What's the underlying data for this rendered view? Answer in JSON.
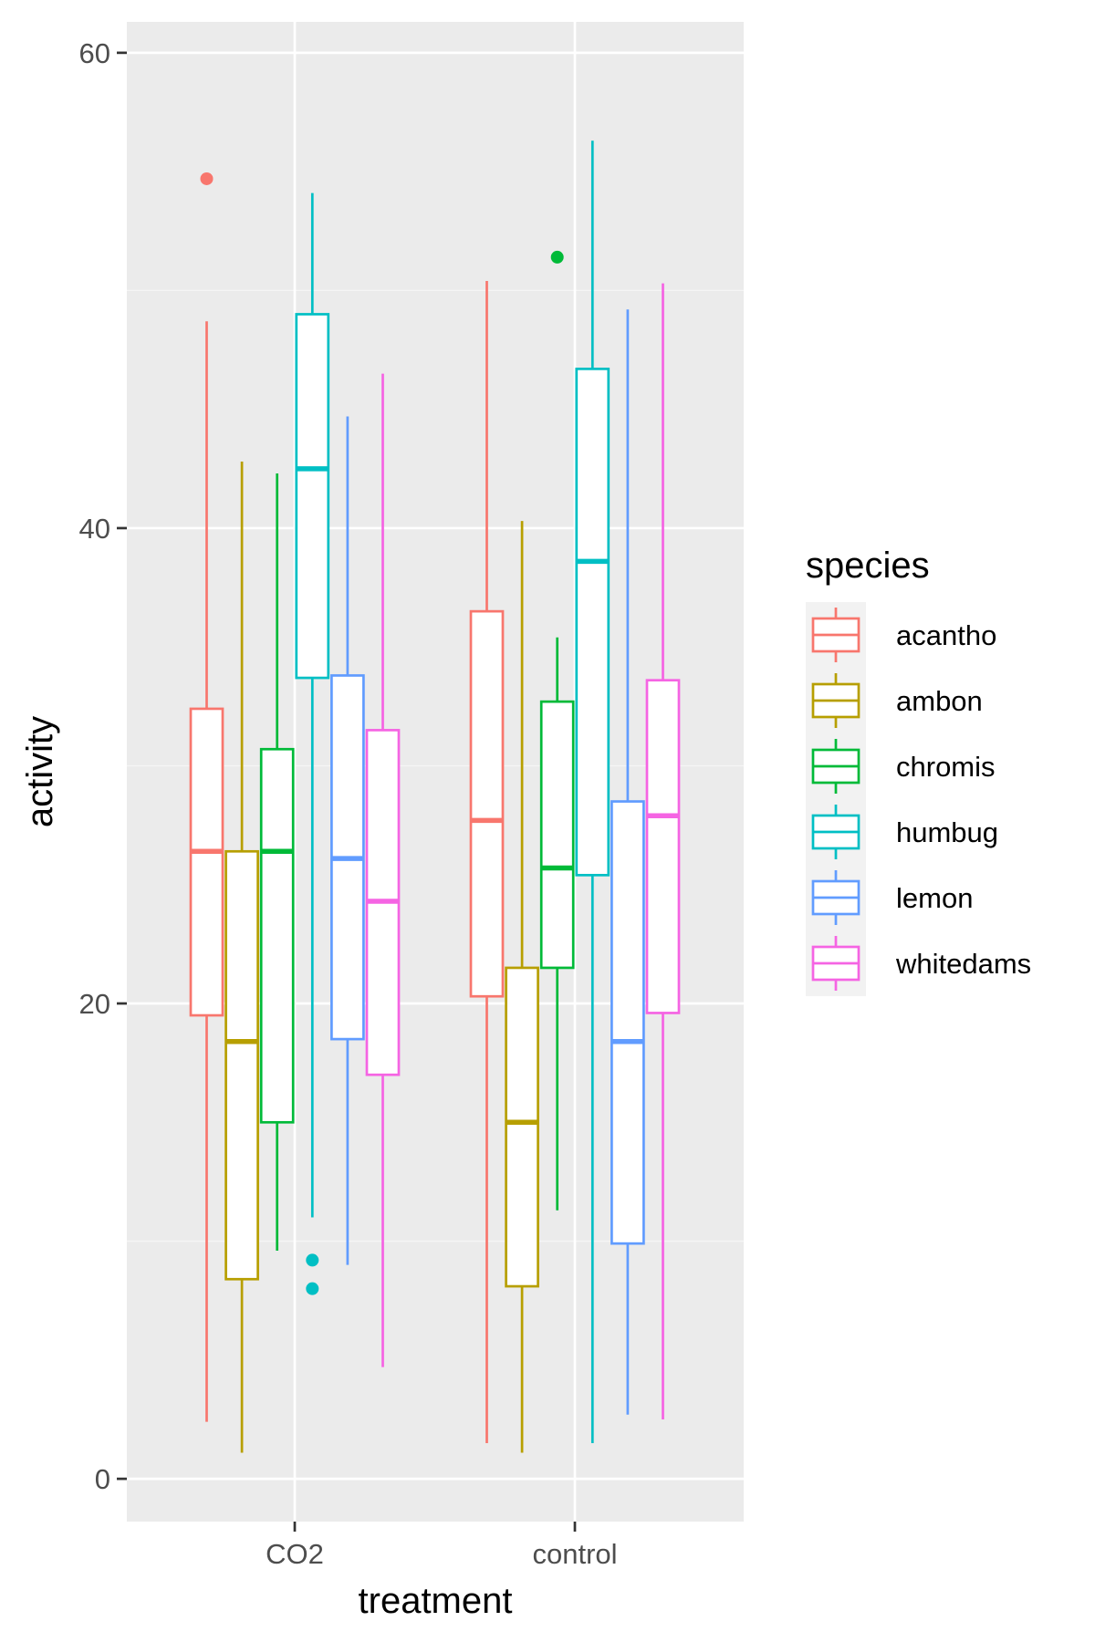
{
  "chart_data": {
    "type": "boxplot",
    "xlabel": "treatment",
    "ylabel": "activity",
    "ylim": [
      -1.8,
      61.3
    ],
    "yticks": [
      0,
      20,
      40,
      60
    ],
    "grid": true,
    "legend": {
      "title": "species",
      "position": "right"
    },
    "categories": [
      "CO2",
      "control"
    ],
    "series": [
      {
        "name": "acantho",
        "color": "#F8766D",
        "boxes": [
          {
            "category": "CO2",
            "whisker_low": 2.4,
            "q1": 19.5,
            "median": 26.4,
            "q3": 32.4,
            "whisker_high": 48.7,
            "outliers": [
              54.7
            ]
          },
          {
            "category": "control",
            "whisker_low": 1.5,
            "q1": 20.3,
            "median": 27.7,
            "q3": 36.5,
            "whisker_high": 50.4,
            "outliers": []
          }
        ]
      },
      {
        "name": "ambon",
        "color": "#B79F00",
        "boxes": [
          {
            "category": "CO2",
            "whisker_low": 1.1,
            "q1": 8.4,
            "median": 18.4,
            "q3": 26.4,
            "whisker_high": 42.8,
            "outliers": []
          },
          {
            "category": "control",
            "whisker_low": 1.1,
            "q1": 8.1,
            "median": 15.0,
            "q3": 21.5,
            "whisker_high": 40.3,
            "outliers": []
          }
        ]
      },
      {
        "name": "chromis",
        "color": "#00BA38",
        "boxes": [
          {
            "category": "CO2",
            "whisker_low": 9.6,
            "q1": 15.0,
            "median": 26.4,
            "q3": 30.7,
            "whisker_high": 42.3,
            "outliers": []
          },
          {
            "category": "control",
            "whisker_low": 11.3,
            "q1": 21.5,
            "median": 25.7,
            "q3": 32.7,
            "whisker_high": 35.4,
            "outliers": [
              51.4
            ]
          }
        ]
      },
      {
        "name": "humbug",
        "color": "#00BFC4",
        "boxes": [
          {
            "category": "CO2",
            "whisker_low": 11.0,
            "q1": 33.7,
            "median": 42.5,
            "q3": 49.0,
            "whisker_high": 54.1,
            "outliers": [
              9.2,
              8.0
            ]
          },
          {
            "category": "control",
            "whisker_low": 1.5,
            "q1": 25.4,
            "median": 38.6,
            "q3": 46.7,
            "whisker_high": 56.3,
            "outliers": []
          }
        ]
      },
      {
        "name": "lemon",
        "color": "#619CFF",
        "boxes": [
          {
            "category": "CO2",
            "whisker_low": 9.0,
            "q1": 18.5,
            "median": 26.1,
            "q3": 33.8,
            "whisker_high": 44.7,
            "outliers": []
          },
          {
            "category": "control",
            "whisker_low": 2.7,
            "q1": 9.9,
            "median": 18.4,
            "q3": 28.5,
            "whisker_high": 49.2,
            "outliers": []
          }
        ]
      },
      {
        "name": "whitedams",
        "color": "#F564E3",
        "boxes": [
          {
            "category": "CO2",
            "whisker_low": 4.7,
            "q1": 17.0,
            "median": 24.3,
            "q3": 31.5,
            "whisker_high": 46.5,
            "outliers": []
          },
          {
            "category": "control",
            "whisker_low": 2.5,
            "q1": 19.6,
            "median": 27.9,
            "q3": 33.6,
            "whisker_high": 50.3,
            "outliers": []
          }
        ]
      }
    ]
  },
  "colors": {
    "panel_background": "#EBEBEB",
    "grid_major": "#FFFFFF",
    "grid_minor": "#F5F5F5",
    "axis_text": "#4D4D4D",
    "axis_title": "#000000",
    "box_fill": "#FFFFFF"
  }
}
